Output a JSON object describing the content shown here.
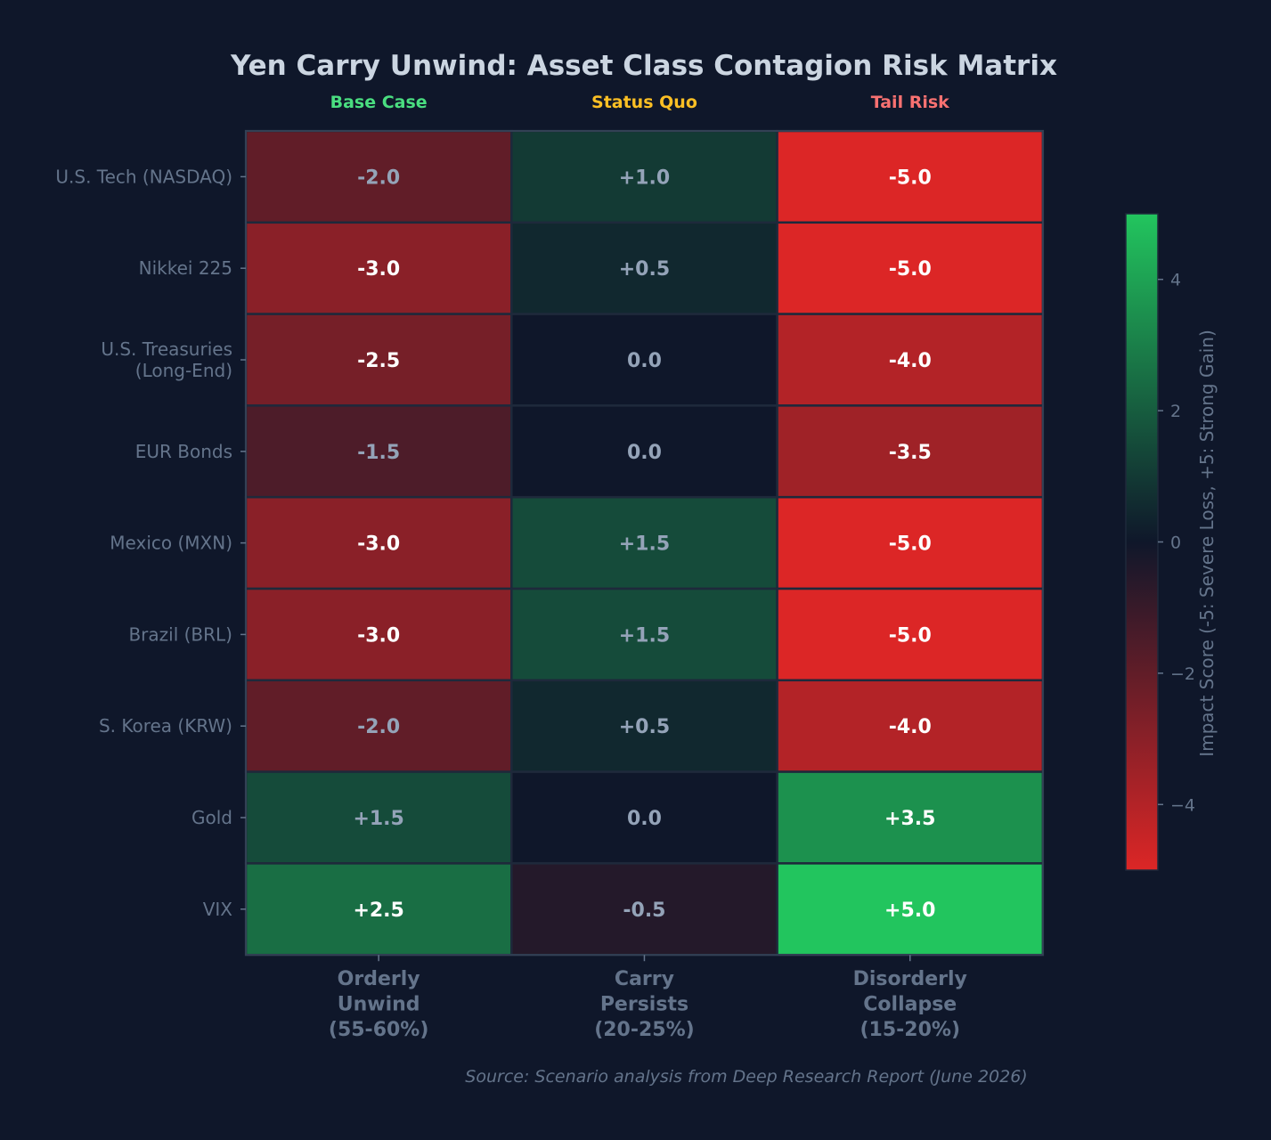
{
  "chart_data": {
    "type": "heatmap",
    "title": "Yen Carry Unwind: Asset Class Contagion Risk Matrix",
    "scenario_tags": [
      {
        "label": "Base Case",
        "color": "#4ade80"
      },
      {
        "label": "Status Quo",
        "color": "#fbbf24"
      },
      {
        "label": "Tail Risk",
        "color": "#f87171"
      }
    ],
    "columns": [
      [
        "Orderly",
        "Unwind",
        "(55-60%)"
      ],
      [
        "Carry",
        "Persists",
        "(20-25%)"
      ],
      [
        "Disorderly",
        "Collapse",
        "(15-20%)"
      ]
    ],
    "rows": [
      [
        "U.S. Tech (NASDAQ)"
      ],
      [
        "Nikkei 225"
      ],
      [
        "U.S. Treasuries",
        "(Long-End)"
      ],
      [
        "EUR Bonds"
      ],
      [
        "Mexico (MXN)"
      ],
      [
        "Brazil (BRL)"
      ],
      [
        "S. Korea (KRW)"
      ],
      [
        "Gold"
      ],
      [
        "VIX"
      ]
    ],
    "values": [
      [
        -2.0,
        1.0,
        -5.0
      ],
      [
        -3.0,
        0.5,
        -5.0
      ],
      [
        -2.5,
        0.0,
        -4.0
      ],
      [
        -1.5,
        0.0,
        -3.5
      ],
      [
        -3.0,
        1.5,
        -5.0
      ],
      [
        -3.0,
        1.5,
        -5.0
      ],
      [
        -2.0,
        0.5,
        -4.0
      ],
      [
        1.5,
        0.0,
        3.5
      ],
      [
        2.5,
        -0.5,
        5.0
      ]
    ],
    "color_scale": {
      "min": -5,
      "max": 5,
      "negative_color": "#dc2626",
      "neutral_color": "#0f172a",
      "positive_color": "#22c55e",
      "ticks": [
        -4,
        -2,
        0,
        2,
        4
      ],
      "label": "Impact Score (-5: Severe Loss, +5: Strong Gain)"
    },
    "source": "Source: Scenario analysis from Deep Research Report (June 2026)"
  }
}
